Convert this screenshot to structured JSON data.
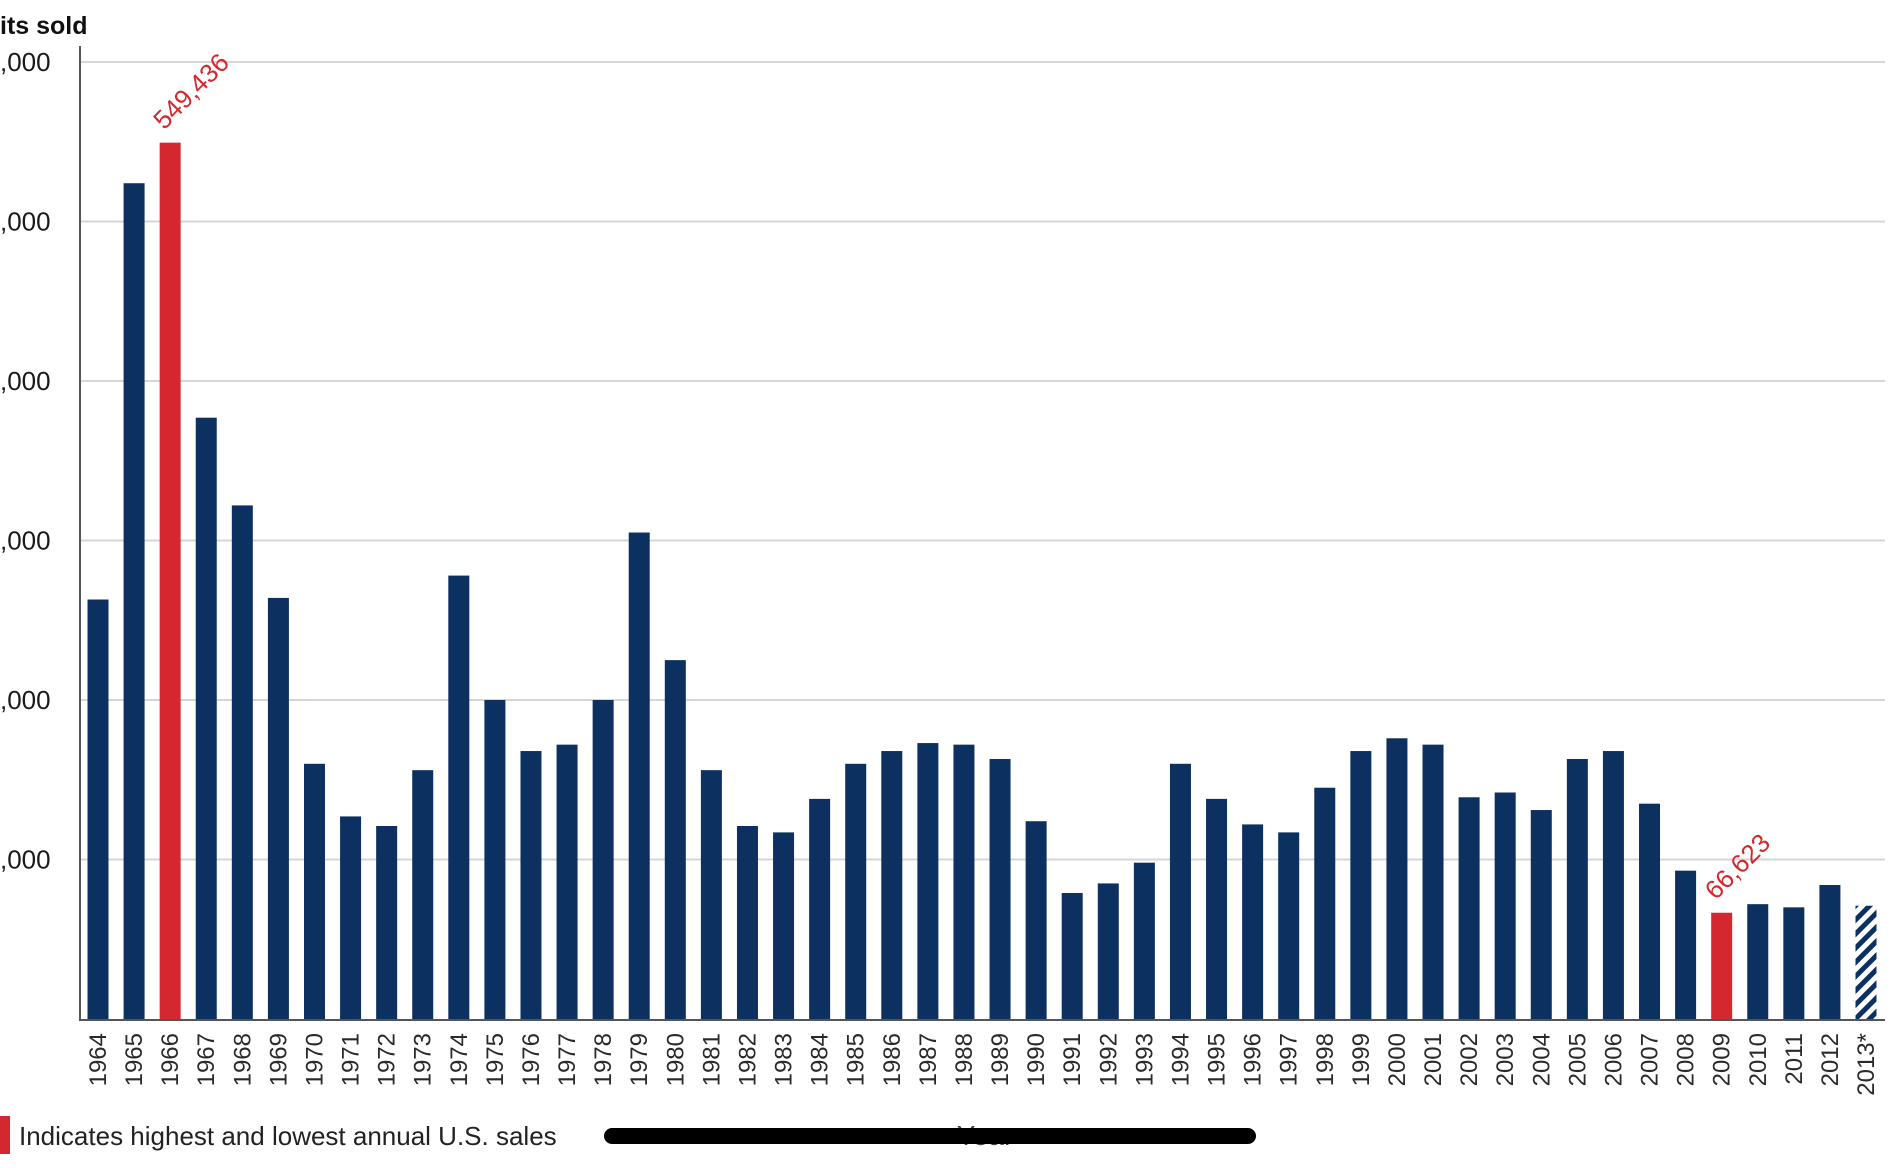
{
  "chart_data": {
    "type": "bar",
    "ylabel": "its sold",
    "xlabel": "Year",
    "ylim": [
      0,
      600000
    ],
    "yticks": [
      100000,
      200000,
      300000,
      400000,
      500000,
      600000
    ],
    "ytick_labels": [
      ",000",
      ",000",
      ",000",
      ",000",
      ",000",
      ",000"
    ],
    "grid": true,
    "categories": [
      "1964",
      "1965",
      "1966",
      "1967",
      "1968",
      "1969",
      "1970",
      "1971",
      "1972",
      "1973",
      "1974",
      "1975",
      "1976",
      "1977",
      "1978",
      "1979",
      "1980",
      "1981",
      "1982",
      "1983",
      "1984",
      "1985",
      "1986",
      "1987",
      "1988",
      "1989",
      "1990",
      "1991",
      "1992",
      "1993",
      "1994",
      "1995",
      "1996",
      "1997",
      "1998",
      "1999",
      "2000",
      "2001",
      "2002",
      "2003",
      "2004",
      "2005",
      "2006",
      "2007",
      "2008",
      "2009",
      "2010",
      "2011",
      "2012",
      "2013*"
    ],
    "values": [
      263000,
      524000,
      549436,
      377000,
      322000,
      264000,
      160000,
      127000,
      121000,
      156000,
      278000,
      200000,
      168000,
      172000,
      200000,
      305000,
      225000,
      156000,
      121000,
      117000,
      138000,
      160000,
      168000,
      173000,
      172000,
      163000,
      124000,
      79000,
      85000,
      98000,
      160000,
      138000,
      122000,
      117000,
      145000,
      168000,
      176000,
      172000,
      139000,
      142000,
      131000,
      163000,
      168000,
      135000,
      93000,
      66623,
      72000,
      70000,
      84000,
      71000
    ],
    "highlight_categories": [
      "1966",
      "2009"
    ],
    "hatched_categories": [
      "2013*"
    ],
    "data_labels": [
      {
        "category": "1966",
        "text": "549,436"
      },
      {
        "category": "2009",
        "text": "66,623"
      }
    ],
    "colors": {
      "bar": "#0c3060",
      "highlight": "#d3282f",
      "grid": "#d6d6d6",
      "axis": "#555555"
    },
    "legend": {
      "placement": "bottom-left",
      "text": "Indicates highest and lowest annual U.S. sales",
      "color": "#d3282f"
    }
  }
}
